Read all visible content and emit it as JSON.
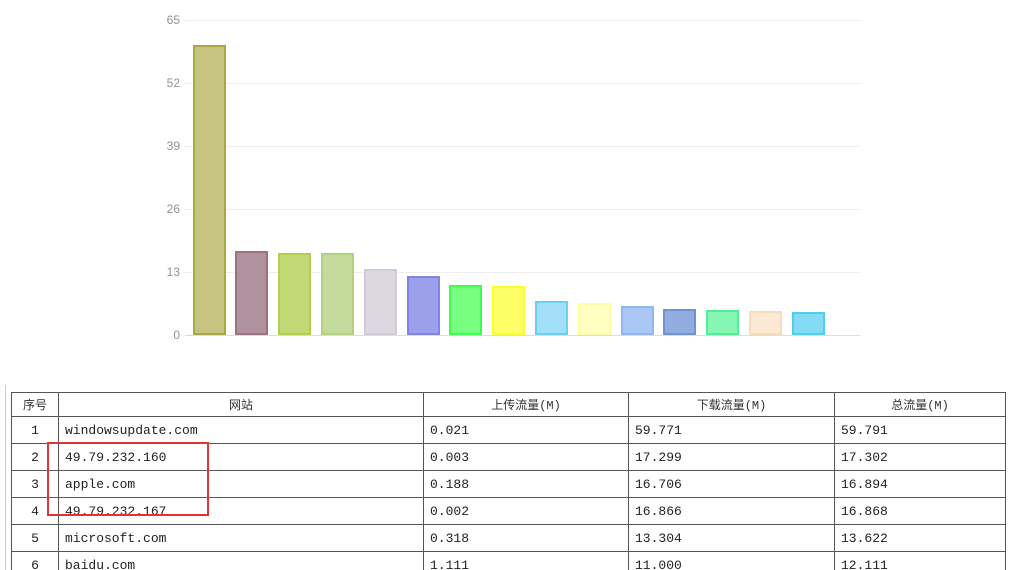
{
  "chart_data": {
    "type": "bar",
    "title": "",
    "xlabel": "",
    "ylabel": "",
    "ylim": [
      0,
      65
    ],
    "yticks": [
      65,
      52,
      39,
      26,
      13,
      0
    ],
    "grid": true,
    "x_axis_labels_visible": false,
    "legend": null,
    "categories": [
      "windowsupdate.com",
      "49.79.232.160",
      "apple.com",
      "49.79.232.167",
      "microsoft.com",
      "baidu.com",
      "",
      "",
      "",
      "",
      "",
      "",
      "",
      "",
      ""
    ],
    "values": [
      59.791,
      17.302,
      16.894,
      16.868,
      13.622,
      12.111,
      10.4,
      10.2,
      7.0,
      6.6,
      6.0,
      5.4,
      5.2,
      5.0,
      4.8
    ],
    "bar_colors": [
      {
        "fill": "#c6c480",
        "border": "#aaa845"
      },
      {
        "fill": "#b0929e",
        "border": "#9c7282"
      },
      {
        "fill": "#c3d976",
        "border": "#aed04a"
      },
      {
        "fill": "#c4d99c",
        "border": "#b3d07c"
      },
      {
        "fill": "#dcd8e1",
        "border": "#d2ccda"
      },
      {
        "fill": "#9c9fe9",
        "border": "#8185e2"
      },
      {
        "fill": "#78fe80",
        "border": "#3efd4f"
      },
      {
        "fill": "#feff66",
        "border": "#fdfe2e"
      },
      {
        "fill": "#a2dff8",
        "border": "#70cdf5"
      },
      {
        "fill": "#ffffc2",
        "border": "#fefda4"
      },
      {
        "fill": "#abc7f6",
        "border": "#90b5f3"
      },
      {
        "fill": "#93acdf",
        "border": "#7092d5"
      },
      {
        "fill": "#85f6b4",
        "border": "#50f195"
      },
      {
        "fill": "#fbe9d4",
        "border": "#f7ddbb"
      },
      {
        "fill": "#83dbf4",
        "border": "#50cef1"
      }
    ]
  },
  "table": {
    "headers": [
      "序号",
      "网站",
      "上传流量(M)",
      "下载流量(M)",
      "总流量(M)"
    ],
    "rows": [
      [
        "1",
        "windowsupdate.com",
        "0.021",
        "59.771",
        "59.791"
      ],
      [
        "2",
        "49.79.232.160",
        "0.003",
        "17.299",
        "17.302"
      ],
      [
        "3",
        "apple.com",
        "0.188",
        "16.706",
        "16.894"
      ],
      [
        "4",
        "49.79.232.167",
        "0.002",
        "16.866",
        "16.868"
      ],
      [
        "5",
        "microsoft.com",
        "0.318",
        "13.304",
        "13.622"
      ],
      [
        "6",
        "baidu.com",
        "1.111",
        "11.000",
        "12.111"
      ]
    ]
  },
  "annotation": {
    "type": "rectangle",
    "color": "#e03333",
    "highlighted_sites": [
      "49.79.232.160",
      "apple.com",
      "49.79.232.167"
    ]
  }
}
